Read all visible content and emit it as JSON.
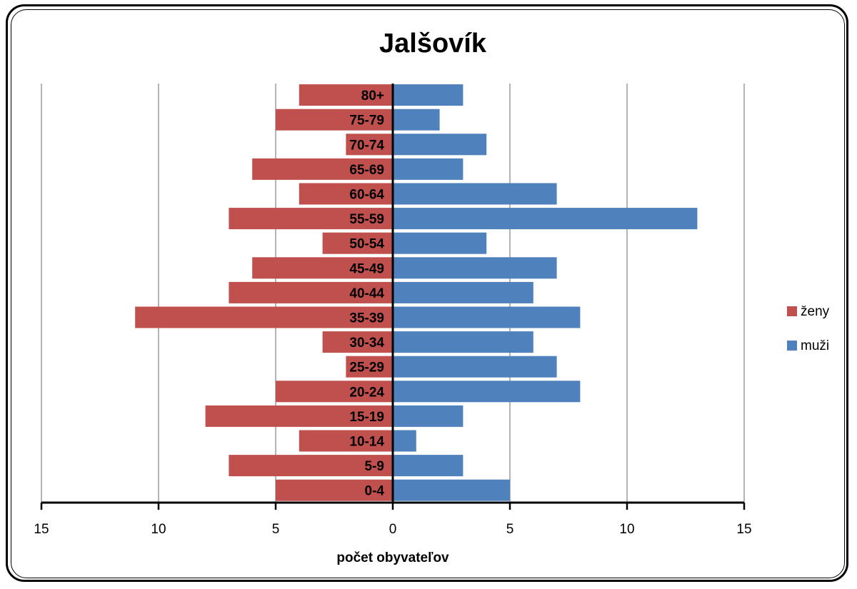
{
  "chart_data": {
    "type": "bar",
    "orientation": "horizontal",
    "title": "Jalšovík",
    "xlabel": "počet obyvateľov",
    "xlim": [
      -15,
      15
    ],
    "xticks": [
      -15,
      -10,
      -5,
      0,
      5,
      10,
      15
    ],
    "xtick_labels": [
      "15",
      "10",
      "5",
      "0",
      "5",
      "10",
      "15"
    ],
    "grid": true,
    "legend_position": "right",
    "categories": [
      "0-4",
      "5-9",
      "10-14",
      "15-19",
      "20-24",
      "25-29",
      "30-34",
      "35-39",
      "40-44",
      "45-49",
      "50-54",
      "55-59",
      "60-64",
      "65-69",
      "70-74",
      "75-79",
      "80+"
    ],
    "series": [
      {
        "name": "ženy",
        "color": "#C0504D",
        "side": "left",
        "values": [
          5,
          7,
          4,
          8,
          5,
          2,
          3,
          11,
          7,
          6,
          3,
          7,
          4,
          6,
          2,
          5,
          4
        ]
      },
      {
        "name": "muži",
        "color": "#4F81BD",
        "side": "right",
        "values": [
          5,
          3,
          1,
          3,
          8,
          7,
          6,
          8,
          6,
          7,
          4,
          13,
          7,
          3,
          4,
          2,
          3
        ]
      }
    ]
  }
}
